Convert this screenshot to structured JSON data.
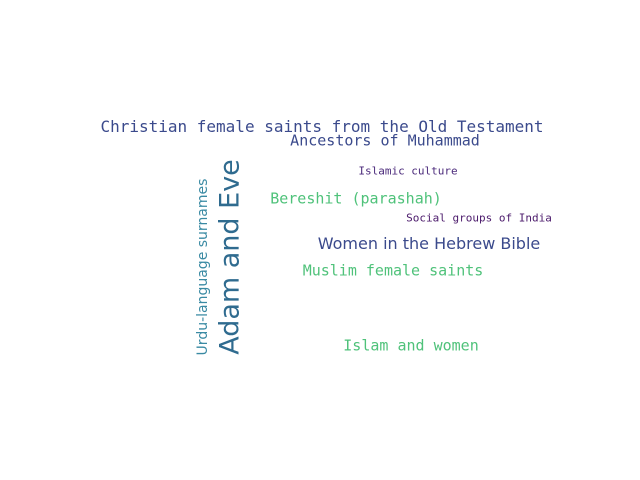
{
  "words": [
    {
      "text": "Christian female saints from the Old Testament",
      "color": "#3b4a8c"
    },
    {
      "text": "Ancestors of Muhammad",
      "color": "#3b4a8c"
    },
    {
      "text": "Islamic culture",
      "color": "#4b2a7b"
    },
    {
      "text": "Bereshit (parashah)",
      "color": "#4fc27a"
    },
    {
      "text": "Social groups of India",
      "color": "#4b1a6b"
    },
    {
      "text": "Women in the Hebrew Bible",
      "color": "#3b4a8c"
    },
    {
      "text": "Muslim female saints",
      "color": "#4fc27a"
    },
    {
      "text": "Islam and women",
      "color": "#4fc27a"
    },
    {
      "text": "Adam and Eve",
      "color": "#2f6b8f"
    },
    {
      "text": "Urdu-language surnames",
      "color": "#3a8aa3"
    }
  ]
}
